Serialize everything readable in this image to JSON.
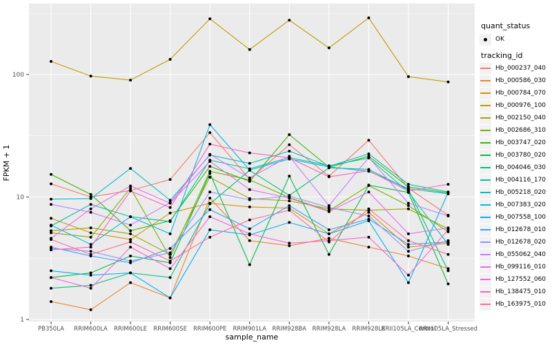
{
  "chart_data": {
    "type": "line",
    "title": "",
    "xlabel": "sample_name",
    "ylabel": "FPKM + 1",
    "x_categories": [
      "PB350LA",
      "RRIM600LA",
      "RRIM600LE",
      "RRIM600SE",
      "RRIM600PE",
      "RRIM901LA",
      "RRIM928BA",
      "RRIM928LA",
      "RRIM928LE",
      "RRII105LA_Control",
      "RRII105LA_Stressed"
    ],
    "y_scale": "log10",
    "y_tick_labels": [
      "1",
      "10",
      "100"
    ],
    "y_tick_values": [
      1,
      10,
      100
    ],
    "y_minor_values": [
      3.1623,
      31.623,
      316.23
    ],
    "ylim": [
      1,
      390
    ],
    "grid": "white major and minor gridlines on gray panel",
    "legend_position": "right",
    "legends": [
      {
        "title": "quant_status",
        "items": [
          {
            "label": "OK",
            "marker": "black-point"
          }
        ]
      },
      {
        "title": "tracking_id",
        "items_from": "series"
      }
    ],
    "point_color": "#000000",
    "series": [
      {
        "name": "Hb_000237_040",
        "color": "#F8766D",
        "values": [
          12.8,
          10.0,
          11.3,
          13.9,
          33.5,
          14.0,
          26.7,
          14.8,
          29.1,
          11.8,
          7.1
        ]
      },
      {
        "name": "Hb_000586_030",
        "color": "#EA8331",
        "values": [
          1.4,
          1.2,
          2.0,
          1.5,
          9.8,
          4.4,
          4.0,
          4.6,
          3.9,
          3.3,
          2.6
        ]
      },
      {
        "name": "Hb_000784_070",
        "color": "#D89000",
        "values": [
          6.7,
          5.1,
          4.5,
          7.4,
          8.9,
          8.3,
          8.1,
          5.0,
          7.5,
          3.9,
          4.2
        ]
      },
      {
        "name": "Hb_000976_100",
        "color": "#C09B00",
        "values": [
          128,
          97,
          90,
          133,
          285,
          160,
          278,
          165,
          290,
          96,
          87
        ]
      },
      {
        "name": "Hb_002150_040",
        "color": "#A3A500",
        "values": [
          5.3,
          5.6,
          5.0,
          3.4,
          14.5,
          9.7,
          9.3,
          8.0,
          7.8,
          8.0,
          5.5
        ]
      },
      {
        "name": "Hb_002686_310",
        "color": "#7CAE00",
        "values": [
          5.1,
          4.7,
          11.8,
          3.2,
          16.2,
          13.8,
          9.9,
          7.7,
          12.4,
          8.5,
          5.2
        ]
      },
      {
        "name": "Hb_003747_020",
        "color": "#39B600",
        "values": [
          15.3,
          10.5,
          5.3,
          6.4,
          17.8,
          13.4,
          32.3,
          17.5,
          21.5,
          12.1,
          10.8
        ]
      },
      {
        "name": "Hb_003780_020",
        "color": "#00BB4E",
        "values": [
          2.2,
          2.4,
          3.3,
          2.9,
          15.6,
          2.8,
          14.8,
          3.4,
          12.5,
          10.9,
          1.95
        ]
      },
      {
        "name": "Hb_004046_030",
        "color": "#00BF7D",
        "values": [
          1.8,
          1.9,
          2.4,
          2.2,
          8.8,
          16.5,
          10.3,
          17.3,
          16.8,
          11.5,
          2.5
        ]
      },
      {
        "name": "Hb_004116_170",
        "color": "#00C1A3",
        "values": [
          5.8,
          8.7,
          6.9,
          6.3,
          20.0,
          17.0,
          21.0,
          18.0,
          20.8,
          11.0,
          4.1
        ]
      },
      {
        "name": "Hb_005218_020",
        "color": "#00BFC4",
        "values": [
          9.6,
          9.7,
          17.1,
          9.4,
          22.0,
          18.8,
          23.7,
          17.8,
          22.5,
          12.7,
          11.0
        ]
      },
      {
        "name": "Hb_007383_020",
        "color": "#00BAE0",
        "values": [
          5.9,
          4.1,
          6.9,
          5.0,
          39.0,
          16.6,
          20.4,
          17.6,
          16.2,
          11.7,
          10.6
        ]
      },
      {
        "name": "Hb_007558_100",
        "color": "#00B0F6",
        "values": [
          2.5,
          2.3,
          2.4,
          1.5,
          5.4,
          4.9,
          6.2,
          5.0,
          6.4,
          2.0,
          10.9
        ]
      },
      {
        "name": "Hb_012678_010",
        "color": "#35A2FF",
        "values": [
          3.9,
          3.3,
          2.9,
          3.8,
          7.9,
          5.5,
          8.5,
          5.4,
          6.6,
          4.1,
          4.3
        ]
      },
      {
        "name": "Hb_012678_020",
        "color": "#9590FF",
        "values": [
          3.8,
          3.6,
          3.0,
          3.5,
          11.0,
          9.5,
          10.2,
          8.2,
          7.0,
          3.6,
          4.4
        ]
      },
      {
        "name": "Hb_055062_040",
        "color": "#C77CFF",
        "values": [
          8.7,
          7.5,
          5.9,
          9.0,
          22.3,
          14.3,
          21.5,
          8.5,
          21.0,
          8.9,
          7.0
        ]
      },
      {
        "name": "Hb_099116_010",
        "color": "#E76BF3",
        "values": [
          4.6,
          8.0,
          12.3,
          8.9,
          19.5,
          11.5,
          9.8,
          7.6,
          11.0,
          5.0,
          5.6
        ]
      },
      {
        "name": "Hb_127552_060",
        "color": "#FA62DB",
        "values": [
          2.2,
          1.8,
          3.9,
          2.6,
          6.9,
          5.0,
          4.2,
          4.4,
          4.7,
          2.3,
          5.4
        ]
      },
      {
        "name": "Hb_138475_010",
        "color": "#FF62BC",
        "values": [
          3.7,
          3.9,
          11.2,
          8.2,
          27.0,
          22.9,
          20.9,
          14.6,
          16.4,
          11.2,
          12.7
        ]
      },
      {
        "name": "Hb_163975_010",
        "color": "#FF6A98",
        "values": [
          4.5,
          3.4,
          4.3,
          3.0,
          4.7,
          6.5,
          7.8,
          4.3,
          8.0,
          4.4,
          3.4
        ]
      }
    ]
  },
  "style": {
    "background": "#FFFFFF",
    "panel_bg": "#EBEBEB",
    "grid_color": "#FFFFFF",
    "tick_label_color": "#4D4D4D",
    "axis_title_color": "#000000",
    "tick_mark_color": "#333333",
    "legend_key_bg": "#F2F2F2",
    "point_color": "#000000"
  }
}
